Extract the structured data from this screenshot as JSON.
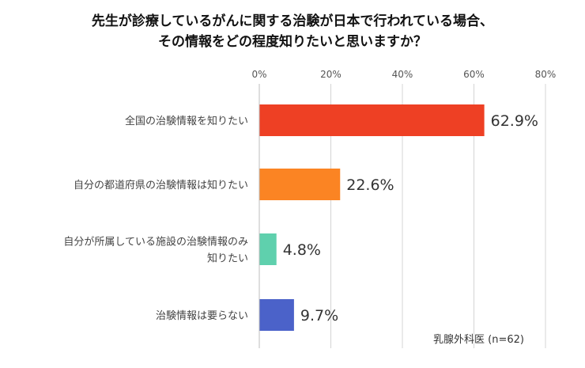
{
  "title_lines": [
    "先生が診療しているがんに関する治験が日本で行われている場合、",
    "その情報をどの程度知りたいと思いますか？"
  ],
  "note": "乳腺外科医 (n=62)",
  "chart_data": {
    "type": "bar",
    "orientation": "horizontal",
    "categories": [
      [
        "全国の治験情報を知りたい"
      ],
      [
        "自分の都道府県の治験情報は知りたい"
      ],
      [
        "自分が所属している施設の治験情報のみ",
        "知りたい"
      ],
      [
        "治験情報は要らない"
      ]
    ],
    "values": [
      62.9,
      22.6,
      4.8,
      9.7
    ],
    "value_labels": [
      "62.9%",
      "22.6%",
      "4.8%",
      "9.7%"
    ],
    "colors": [
      "#ee4024",
      "#fb8423",
      "#5fd0ad",
      "#4b62c9"
    ],
    "x_ticks": [
      0,
      20,
      40,
      60,
      80
    ],
    "x_tick_labels": [
      "0%",
      "20%",
      "40%",
      "60%",
      "80%"
    ],
    "xlim": [
      0,
      80
    ],
    "grid": true,
    "xlabel": "",
    "ylabel": ""
  }
}
